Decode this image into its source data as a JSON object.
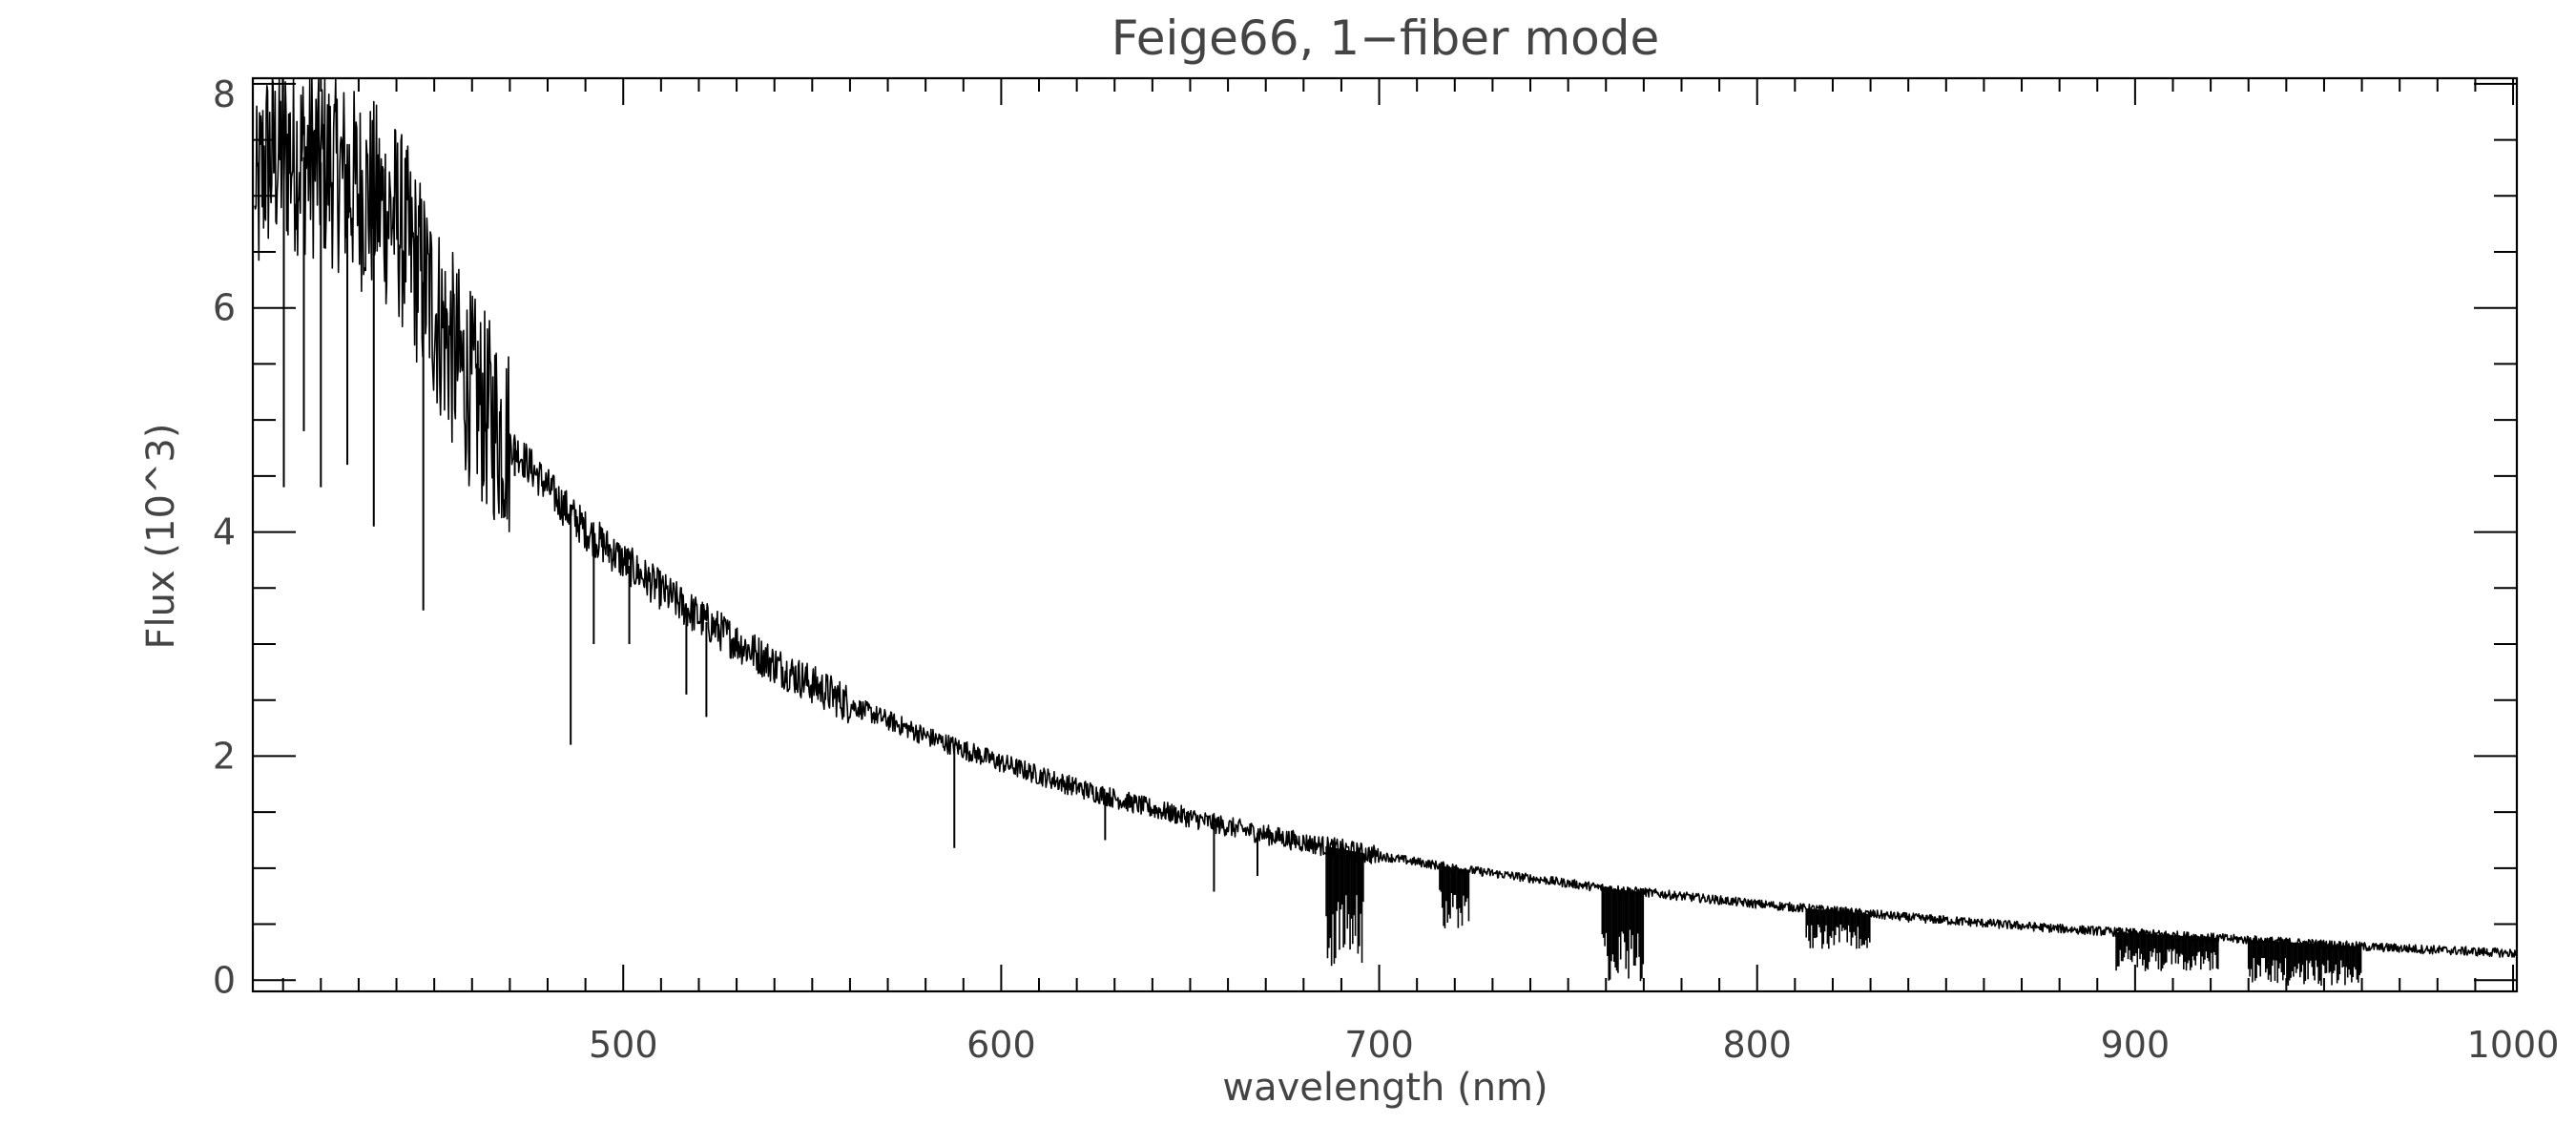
{
  "chart_data": {
    "type": "line",
    "title": "Feige66, 1−fiber mode",
    "xlabel": "wavelength (nm)",
    "ylabel": "Flux (10^3)",
    "xlim": [
      402,
      1001
    ],
    "ylim": [
      -0.1,
      8.05
    ],
    "xticks": [
      500,
      600,
      700,
      800,
      900,
      1000
    ],
    "xtick_labels": [
      "500",
      "600",
      "700",
      "800",
      "900",
      "1000"
    ],
    "x_minor_step": 10,
    "yticks": [
      0,
      2,
      4,
      6,
      8
    ],
    "ytick_labels": [
      "0",
      "2",
      "4",
      "6",
      "8"
    ],
    "y_minor_step": 0.5,
    "grid": false,
    "series": [
      {
        "continuum": {
          "x": [
            403,
            405,
            410,
            415,
            420,
            425,
            430,
            435,
            440,
            445,
            450,
            455,
            460,
            465,
            470,
            475,
            480,
            485,
            490,
            495,
            500,
            510,
            520,
            530,
            540,
            550,
            560,
            570,
            580,
            590,
            600,
            620,
            640,
            660,
            680,
            700,
            720,
            740,
            760,
            780,
            800,
            820,
            840,
            860,
            880,
            900,
            920,
            940,
            960,
            980,
            1000
          ],
          "y": [
            6.9,
            7.3,
            7.4,
            7.35,
            7.3,
            7.2,
            7.05,
            6.95,
            6.8,
            6.4,
            6.0,
            5.6,
            5.25,
            5.0,
            4.8,
            4.6,
            4.4,
            4.2,
            4.02,
            3.88,
            3.74,
            3.48,
            3.24,
            3.02,
            2.82,
            2.64,
            2.46,
            2.32,
            2.18,
            2.06,
            1.94,
            1.72,
            1.53,
            1.37,
            1.23,
            1.11,
            1.0,
            0.91,
            0.82,
            0.75,
            0.68,
            0.62,
            0.56,
            0.51,
            0.46,
            0.42,
            0.38,
            0.34,
            0.3,
            0.27,
            0.24
          ]
        },
        "noise_bands": [
          {
            "x": [
              403,
              470
            ],
            "amplitude": 0.9
          },
          {
            "x": [
              470,
              560
            ],
            "amplitude": 0.18
          },
          {
            "x": [
              560,
              700
            ],
            "amplitude": 0.09
          },
          {
            "x": [
              700,
              1000
            ],
            "amplitude": 0.04
          }
        ],
        "absorption_lines": [
          {
            "x": 410.2,
            "min": 4.4
          },
          {
            "x": 415.5,
            "min": 4.9
          },
          {
            "x": 420.0,
            "min": 4.4
          },
          {
            "x": 427.0,
            "min": 4.6
          },
          {
            "x": 434.0,
            "min": 4.05
          },
          {
            "x": 447.1,
            "min": 3.3
          },
          {
            "x": 471.3,
            "min": 4.5
          },
          {
            "x": 486.1,
            "min": 2.1
          },
          {
            "x": 492.2,
            "min": 3.0
          },
          {
            "x": 501.6,
            "min": 3.0
          },
          {
            "x": 516.7,
            "min": 2.55
          },
          {
            "x": 522.0,
            "min": 2.35
          },
          {
            "x": 587.6,
            "min": 1.18
          },
          {
            "x": 627.5,
            "min": 1.25
          },
          {
            "x": 656.3,
            "min": 0.79
          },
          {
            "x": 667.8,
            "min": 0.93
          }
        ],
        "telluric_bands": [
          {
            "x": [
              686,
              696
            ],
            "min": 0.1
          },
          {
            "x": [
              716,
              724
            ],
            "min": 0.45
          },
          {
            "x": [
              759,
              770
            ],
            "min": -0.02
          },
          {
            "x": [
              813,
              830
            ],
            "min": 0.28
          },
          {
            "x": [
              895,
              922
            ],
            "min": 0.08
          },
          {
            "x": [
              930,
              960
            ],
            "min": -0.05
          }
        ]
      }
    ]
  }
}
